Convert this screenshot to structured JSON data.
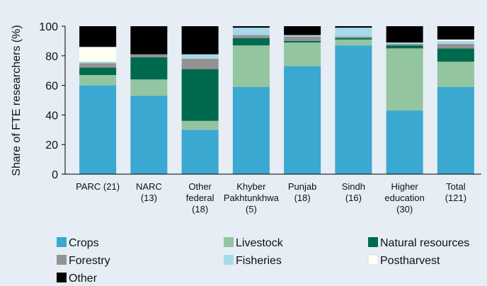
{
  "chart_data": {
    "type": "stacked_bar",
    "y_label": "Share of FTE researchers (%)",
    "categories": [
      "PARC (21)",
      "NARC\n(13)",
      "Other\nfederal\n(18)",
      "Khyber\nPakhtunkhwa\n(5)",
      "Punjab\n(18)",
      "Sindh\n(16)",
      "Higher\neducation\n(30)",
      "Total\n(121)"
    ],
    "series": [
      {
        "name": "Crops",
        "color": "#3aa8d0",
        "values": [
          60,
          53,
          30,
          59,
          73,
          87,
          43,
          59
        ]
      },
      {
        "name": "Livestock",
        "color": "#93c5a0",
        "values": [
          7,
          11,
          6,
          28,
          16,
          4,
          42,
          17
        ]
      },
      {
        "name": "Natural resources",
        "color": "#006a4e",
        "values": [
          5,
          15,
          35,
          5,
          1,
          1,
          2,
          9
        ]
      },
      {
        "name": "Forestry",
        "color": "#939393",
        "values": [
          3,
          2,
          7,
          2,
          3,
          1,
          1,
          3
        ]
      },
      {
        "name": "Fisheries",
        "color": "#a6d9ea",
        "values": [
          1,
          0,
          3,
          5,
          1,
          6,
          1,
          2
        ]
      },
      {
        "name": "Postharvest",
        "color": "#fffff4",
        "values": [
          10,
          0,
          0,
          0,
          0,
          0,
          0,
          1
        ]
      },
      {
        "name": "Other",
        "color": "#000000",
        "values": [
          14,
          19,
          19,
          1,
          6,
          1,
          11,
          9
        ]
      }
    ],
    "ylim": [
      0,
      100
    ],
    "yticks": [
      0,
      20,
      40,
      60,
      80,
      100
    ],
    "grid": false,
    "legend": "bottom"
  }
}
